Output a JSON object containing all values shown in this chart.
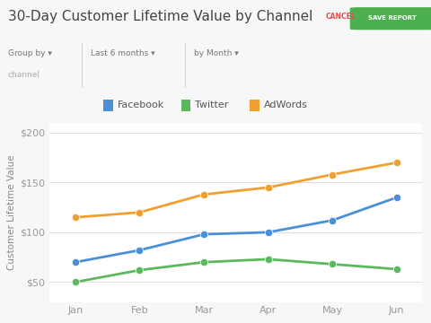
{
  "title": "30-Day Customer Lifetime Value by Channel",
  "cancel_text": "CANCEL",
  "save_text": "SAVE REPORT",
  "ylabel": "Customer Lifetime Value",
  "months": [
    "Jan",
    "Feb",
    "Mar",
    "Apr",
    "May",
    "Jun"
  ],
  "facebook": [
    70,
    82,
    98,
    100,
    112,
    135
  ],
  "twitter": [
    50,
    62,
    70,
    73,
    68,
    63
  ],
  "adwords": [
    115,
    120,
    138,
    145,
    158,
    170
  ],
  "facebook_color": "#4a90d9",
  "twitter_color": "#5cb85c",
  "adwords_color": "#f0a030",
  "background_color": "#f7f7f7",
  "plot_bg_color": "#ffffff",
  "grid_color": "#e0e0e0",
  "axis_label_color": "#888888",
  "tick_color": "#999999",
  "title_color": "#444444",
  "filter_color": "#777777",
  "legend_labels": [
    "Facebook",
    "Twitter",
    "AdWords"
  ],
  "ylim": [
    30,
    210
  ],
  "yticks": [
    50,
    100,
    150,
    200
  ],
  "ytick_labels": [
    "$50",
    "$100",
    "$150",
    "$200"
  ],
  "line_width": 2.0,
  "marker_size": 6,
  "title_fontsize": 11,
  "axis_label_fontsize": 7.5,
  "tick_fontsize": 8,
  "legend_fontsize": 8,
  "cancel_color": "#e05050",
  "save_bg": "#4caf50",
  "save_text_color": "#ffffff"
}
